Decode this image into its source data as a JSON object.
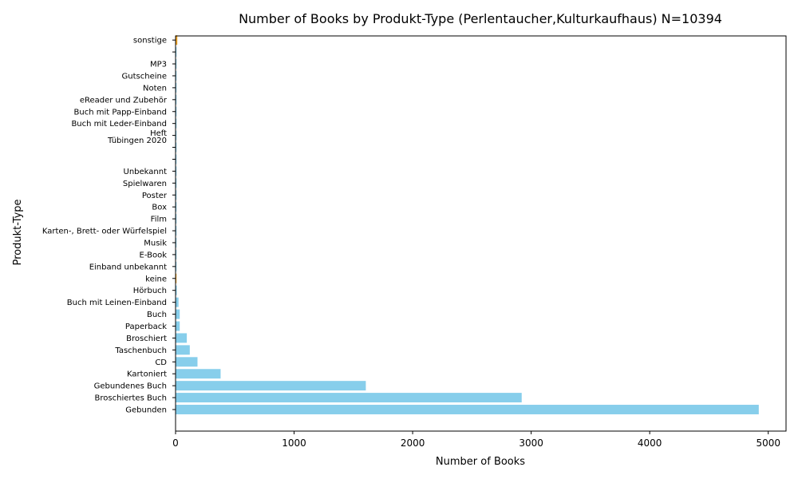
{
  "chart_data": {
    "type": "bar",
    "orientation": "horizontal",
    "title": "Number of Books by Produkt-Type (Perlentaucher,Kulturkaufhaus) N=10394",
    "xlabel": "Number of Books",
    "ylabel": "Produkt-Type",
    "xlim": [
      0,
      5150
    ],
    "xticks": [
      0,
      1000,
      2000,
      3000,
      4000,
      5000
    ],
    "grid": false,
    "legend": "none",
    "colors": {
      "default_bar": "#87ceeb",
      "highlight_bar": "#f5a623",
      "axis": "#000000"
    },
    "categories": [
      "Gebunden",
      "Broschiertes Buch",
      "Gebundenes Buch",
      "Kartoniert",
      "CD",
      "Taschenbuch",
      "Broschiert",
      "Paperback",
      "Buch",
      "Buch mit Leinen-Einband",
      "Hörbuch",
      "keine",
      "Einband unbekannt",
      "E-Book",
      "Musik",
      "Karten-, Brett- oder Würfelspiel",
      "Film",
      "Box",
      "Poster",
      "Spielwaren",
      "Unbekannt",
      "",
      "Tübingen 2020",
      "Heft",
      "Buch mit Leder-Einband",
      "Buch mit Papp-Einband",
      "eReader und Zubehör",
      "Noten",
      "Gutscheine",
      "MP3",
      "",
      "sonstige"
    ],
    "values": [
      4920,
      2920,
      1605,
      380,
      185,
      120,
      95,
      35,
      35,
      25,
      10,
      8,
      4,
      3,
      3,
      2,
      2,
      2,
      1,
      1,
      1,
      1,
      1,
      1,
      1,
      1,
      1,
      1,
      1,
      1,
      1,
      15
    ],
    "highlight": [
      false,
      false,
      false,
      false,
      false,
      false,
      false,
      false,
      false,
      false,
      false,
      true,
      false,
      false,
      false,
      false,
      false,
      false,
      false,
      false,
      false,
      false,
      false,
      false,
      false,
      false,
      false,
      false,
      false,
      false,
      false,
      true
    ]
  }
}
